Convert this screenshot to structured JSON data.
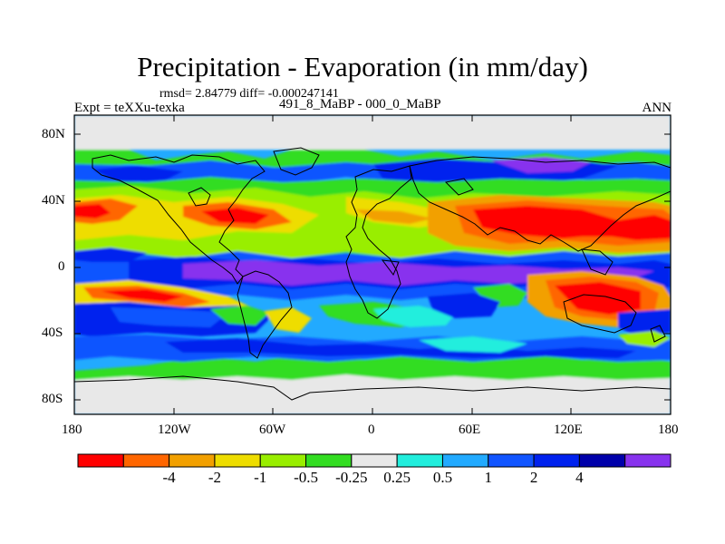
{
  "title": "Precipitation - Evaporation (in mm/day)",
  "stats": "rmsd= 2.84779 diff= -0.000247141",
  "experiment": "Expt = teXXu-texka",
  "period": "491_8_MaBP - 000_0_MaBP",
  "season": "ANN",
  "lat_labels": [
    "80N",
    "40N",
    "0",
    "40S",
    "80S"
  ],
  "lon_labels": [
    "180",
    "120W",
    "60W",
    "0",
    "60E",
    "120E",
    "180"
  ],
  "colorbar": {
    "colors": [
      "#ff0000",
      "#ff6600",
      "#f2a000",
      "#eedd00",
      "#99ee00",
      "#33dd22",
      "#e8e8e8",
      "#22eedd",
      "#22aaff",
      "#1155ff",
      "#0022ee",
      "#0000aa",
      "#8833ee"
    ],
    "labels": [
      "-4",
      "-2",
      "-1",
      "-0.5",
      "-0.25",
      "0.25",
      "0.5",
      "1",
      "2",
      "4"
    ]
  }
}
